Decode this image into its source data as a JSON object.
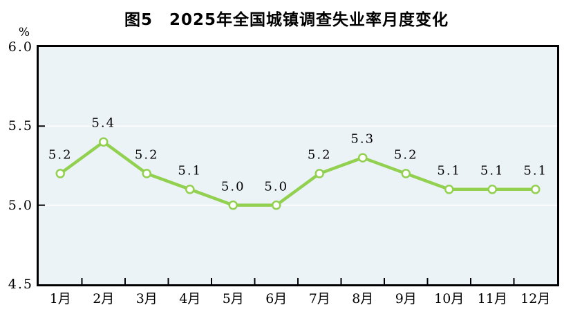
{
  "figure": {
    "title": "图5　2025年全国城镇调查失业率月度变化",
    "unit_label": "%"
  },
  "chart_data": {
    "type": "line",
    "title": "图5　2025年全国城镇调查失业率月度变化",
    "categories": [
      "1月",
      "2月",
      "3月",
      "4月",
      "5月",
      "6月",
      "7月",
      "8月",
      "9月",
      "10月",
      "11月",
      "12月"
    ],
    "values": [
      5.2,
      5.4,
      5.2,
      5.1,
      5.0,
      5.0,
      5.2,
      5.3,
      5.2,
      5.1,
      5.1,
      5.1
    ],
    "point_labels": [
      "5.2",
      "5.4",
      "5.2",
      "5.1",
      "5.0",
      "5.0",
      "5.2",
      "5.3",
      "5.2",
      "5.1",
      "5.1",
      "5.1"
    ],
    "xlabel": "",
    "ylabel": "%",
    "ylim": [
      4.5,
      6.0
    ],
    "y_tick_labels": [
      "6.0",
      "5.5",
      "5.0",
      "4.5"
    ],
    "grid": "horizontal-white-at-interior-ticks",
    "legend": "none",
    "marker": "open-circle"
  },
  "colors": {
    "line": "#92d050",
    "marker_fill": "#ffffff",
    "plot_background": "#ecf3f7",
    "axis": "#000000",
    "gridline": "#ffffff",
    "text": "#000000",
    "page_background": "#ffffff"
  }
}
